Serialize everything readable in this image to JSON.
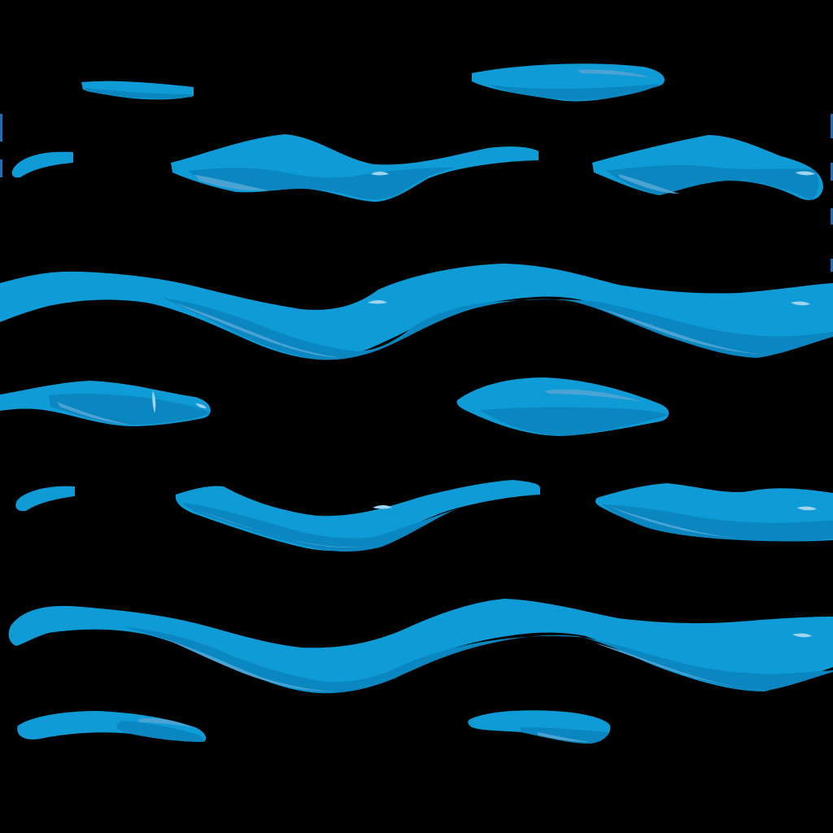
{
  "image": {
    "subject": "water-waves-pattern",
    "background_color": "#000000",
    "palette": {
      "wave_main": "#0e9bd6",
      "wave_shadow": "#0a86c0",
      "wave_highlight": "#4aa3d2",
      "wave_gloss": "#9fd3ee",
      "wave_edge": "#1e6fb7"
    }
  }
}
